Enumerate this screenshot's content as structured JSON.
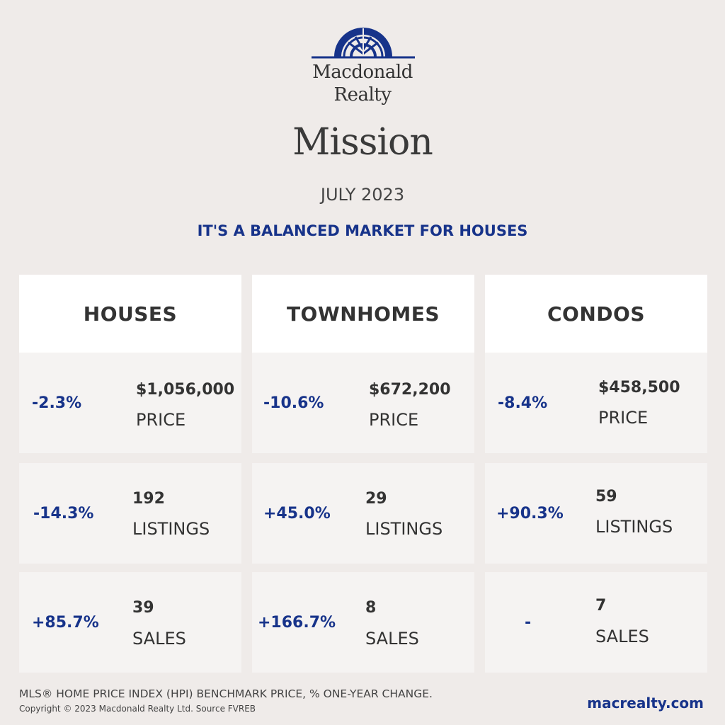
{
  "brand": {
    "name_line1": "Macdonald",
    "name_line2": "Realty",
    "accent_color": "#17338a"
  },
  "header": {
    "city": "Mission",
    "month": "JULY 2023",
    "headline": "IT'S A BALANCED MARKET FOR HOUSES"
  },
  "columns": [
    {
      "title": "HOUSES",
      "price": {
        "change": "-2.3%",
        "value": "$1,056,000",
        "label": "PRICE"
      },
      "listings": {
        "change": "-14.3%",
        "value": "192",
        "label": "LISTINGS"
      },
      "sales": {
        "change": "+85.7%",
        "value": "39",
        "label": "SALES"
      }
    },
    {
      "title": "TOWNHOMES",
      "price": {
        "change": "-10.6%",
        "value": "$672,200",
        "label": "PRICE"
      },
      "listings": {
        "change": "+45.0%",
        "value": "29",
        "label": "LISTINGS"
      },
      "sales": {
        "change": "+166.7%",
        "value": "8",
        "label": "SALES"
      }
    },
    {
      "title": "CONDOS",
      "price": {
        "change": "-8.4%",
        "value": "$458,500",
        "label": "PRICE"
      },
      "listings": {
        "change": "+90.3%",
        "value": "59",
        "label": "LISTINGS"
      },
      "sales": {
        "change": "-",
        "value": "7",
        "label": "SALES"
      }
    }
  ],
  "footer": {
    "note": "MLS® HOME PRICE INDEX (HPI) BENCHMARK PRICE, % ONE-YEAR CHANGE.",
    "copyright": "Copyright © 2023 Macdonald Realty Ltd. Source FVREB",
    "website": "macrealty.com"
  }
}
